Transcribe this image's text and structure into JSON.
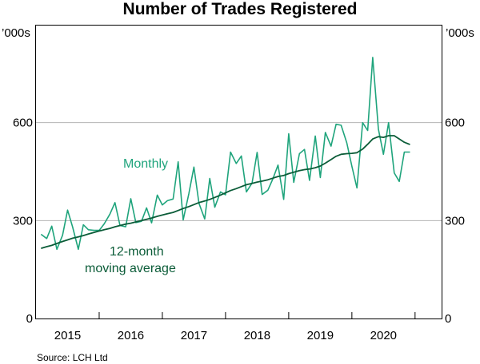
{
  "chart_data": {
    "type": "line",
    "title": "Number of Trades Registered",
    "unit_left": "’000s",
    "unit_right": "’000s",
    "ylim": [
      0,
      900
    ],
    "yticks": [
      0,
      300,
      600
    ],
    "ytick_labels": [
      "0",
      "300",
      "600"
    ],
    "xlim": [
      2014.5,
      2020.92
    ],
    "xtick_labels": [
      {
        "label": "2015",
        "at": 2015.0
      },
      {
        "label": "2016",
        "at": 2016.0
      },
      {
        "label": "2017",
        "at": 2017.0
      },
      {
        "label": "2018",
        "at": 2018.0
      },
      {
        "label": "2019",
        "at": 2019.0
      },
      {
        "label": "2020",
        "at": 2020.0
      }
    ],
    "year_boundaries": [
      2015.5,
      2016.5,
      2017.5,
      2018.5,
      2019.5,
      2020.5
    ],
    "gridlines": [
      300,
      600
    ],
    "series": [
      {
        "name": "Monthly",
        "annotation": "Monthly",
        "color": "#1fa47c",
        "x": [
          2014.58,
          2014.67,
          2014.75,
          2014.83,
          2014.92,
          2015.0,
          2015.08,
          2015.17,
          2015.25,
          2015.33,
          2015.42,
          2015.5,
          2015.58,
          2015.67,
          2015.75,
          2015.83,
          2015.92,
          2016.0,
          2016.08,
          2016.17,
          2016.25,
          2016.33,
          2016.42,
          2016.5,
          2016.58,
          2016.67,
          2016.75,
          2016.83,
          2016.92,
          2017.0,
          2017.08,
          2017.17,
          2017.25,
          2017.33,
          2017.42,
          2017.5,
          2017.58,
          2017.67,
          2017.75,
          2017.83,
          2017.92,
          2018.0,
          2018.08,
          2018.17,
          2018.25,
          2018.33,
          2018.42,
          2018.5,
          2018.58,
          2018.67,
          2018.75,
          2018.83,
          2018.92,
          2019.0,
          2019.08,
          2019.17,
          2019.25,
          2019.33,
          2019.42,
          2019.5,
          2019.58,
          2019.67,
          2019.75,
          2019.83,
          2019.92,
          2020.0,
          2020.08,
          2020.17,
          2020.25,
          2020.33,
          2020.42
        ],
        "values": [
          258,
          245,
          283,
          212,
          255,
          332,
          280,
          212,
          287,
          272,
          270,
          270,
          290,
          320,
          355,
          285,
          281,
          367,
          294,
          298,
          339,
          293,
          378,
          348,
          361,
          366,
          480,
          302,
          383,
          464,
          353,
          305,
          429,
          341,
          388,
          379,
          510,
          475,
          498,
          388,
          415,
          509,
          380,
          393,
          428,
          470,
          365,
          566,
          417,
          505,
          518,
          423,
          559,
          432,
          570,
          528,
          595,
          592,
          538,
          466,
          400,
          600,
          576,
          800,
          580,
          503,
          600,
          446,
          420,
          510,
          510
        ],
        "note_last_index_y": 505
      },
      {
        "name": "12-month moving average",
        "annotation_lines": [
          "12-month",
          "moving average"
        ],
        "color": "#0b5c38",
        "x": [
          2014.58,
          2014.67,
          2014.75,
          2014.83,
          2014.92,
          2015.0,
          2015.08,
          2015.17,
          2015.25,
          2015.33,
          2015.42,
          2015.5,
          2015.58,
          2015.67,
          2015.75,
          2015.83,
          2015.92,
          2016.0,
          2016.08,
          2016.17,
          2016.25,
          2016.33,
          2016.42,
          2016.5,
          2016.58,
          2016.67,
          2016.75,
          2016.83,
          2016.92,
          2017.0,
          2017.08,
          2017.17,
          2017.25,
          2017.33,
          2017.42,
          2017.5,
          2017.58,
          2017.67,
          2017.75,
          2017.83,
          2017.92,
          2018.0,
          2018.08,
          2018.17,
          2018.25,
          2018.33,
          2018.42,
          2018.5,
          2018.58,
          2018.67,
          2018.75,
          2018.83,
          2018.92,
          2019.0,
          2019.08,
          2019.17,
          2019.25,
          2019.33,
          2019.42,
          2019.5,
          2019.58,
          2019.67,
          2019.75,
          2019.83,
          2019.92,
          2020.0,
          2020.08,
          2020.17,
          2020.25,
          2020.33,
          2020.42
        ],
        "values": [
          215,
          220,
          224,
          230,
          236,
          241,
          246,
          250,
          254,
          259,
          264,
          268,
          272,
          276,
          281,
          285,
          289,
          292,
          296,
          300,
          304,
          308,
          313,
          317,
          321,
          325,
          331,
          337,
          343,
          349,
          355,
          360,
          365,
          371,
          378,
          385,
          392,
          398,
          404,
          410,
          414,
          418,
          421,
          425,
          430,
          435,
          438,
          444,
          448,
          453,
          456,
          458,
          462,
          467,
          476,
          487,
          497,
          503,
          505,
          506,
          508,
          519,
          534,
          550,
          557,
          555,
          560,
          560,
          550,
          540,
          533
        ]
      }
    ]
  },
  "source": "Source:   LCH Ltd"
}
